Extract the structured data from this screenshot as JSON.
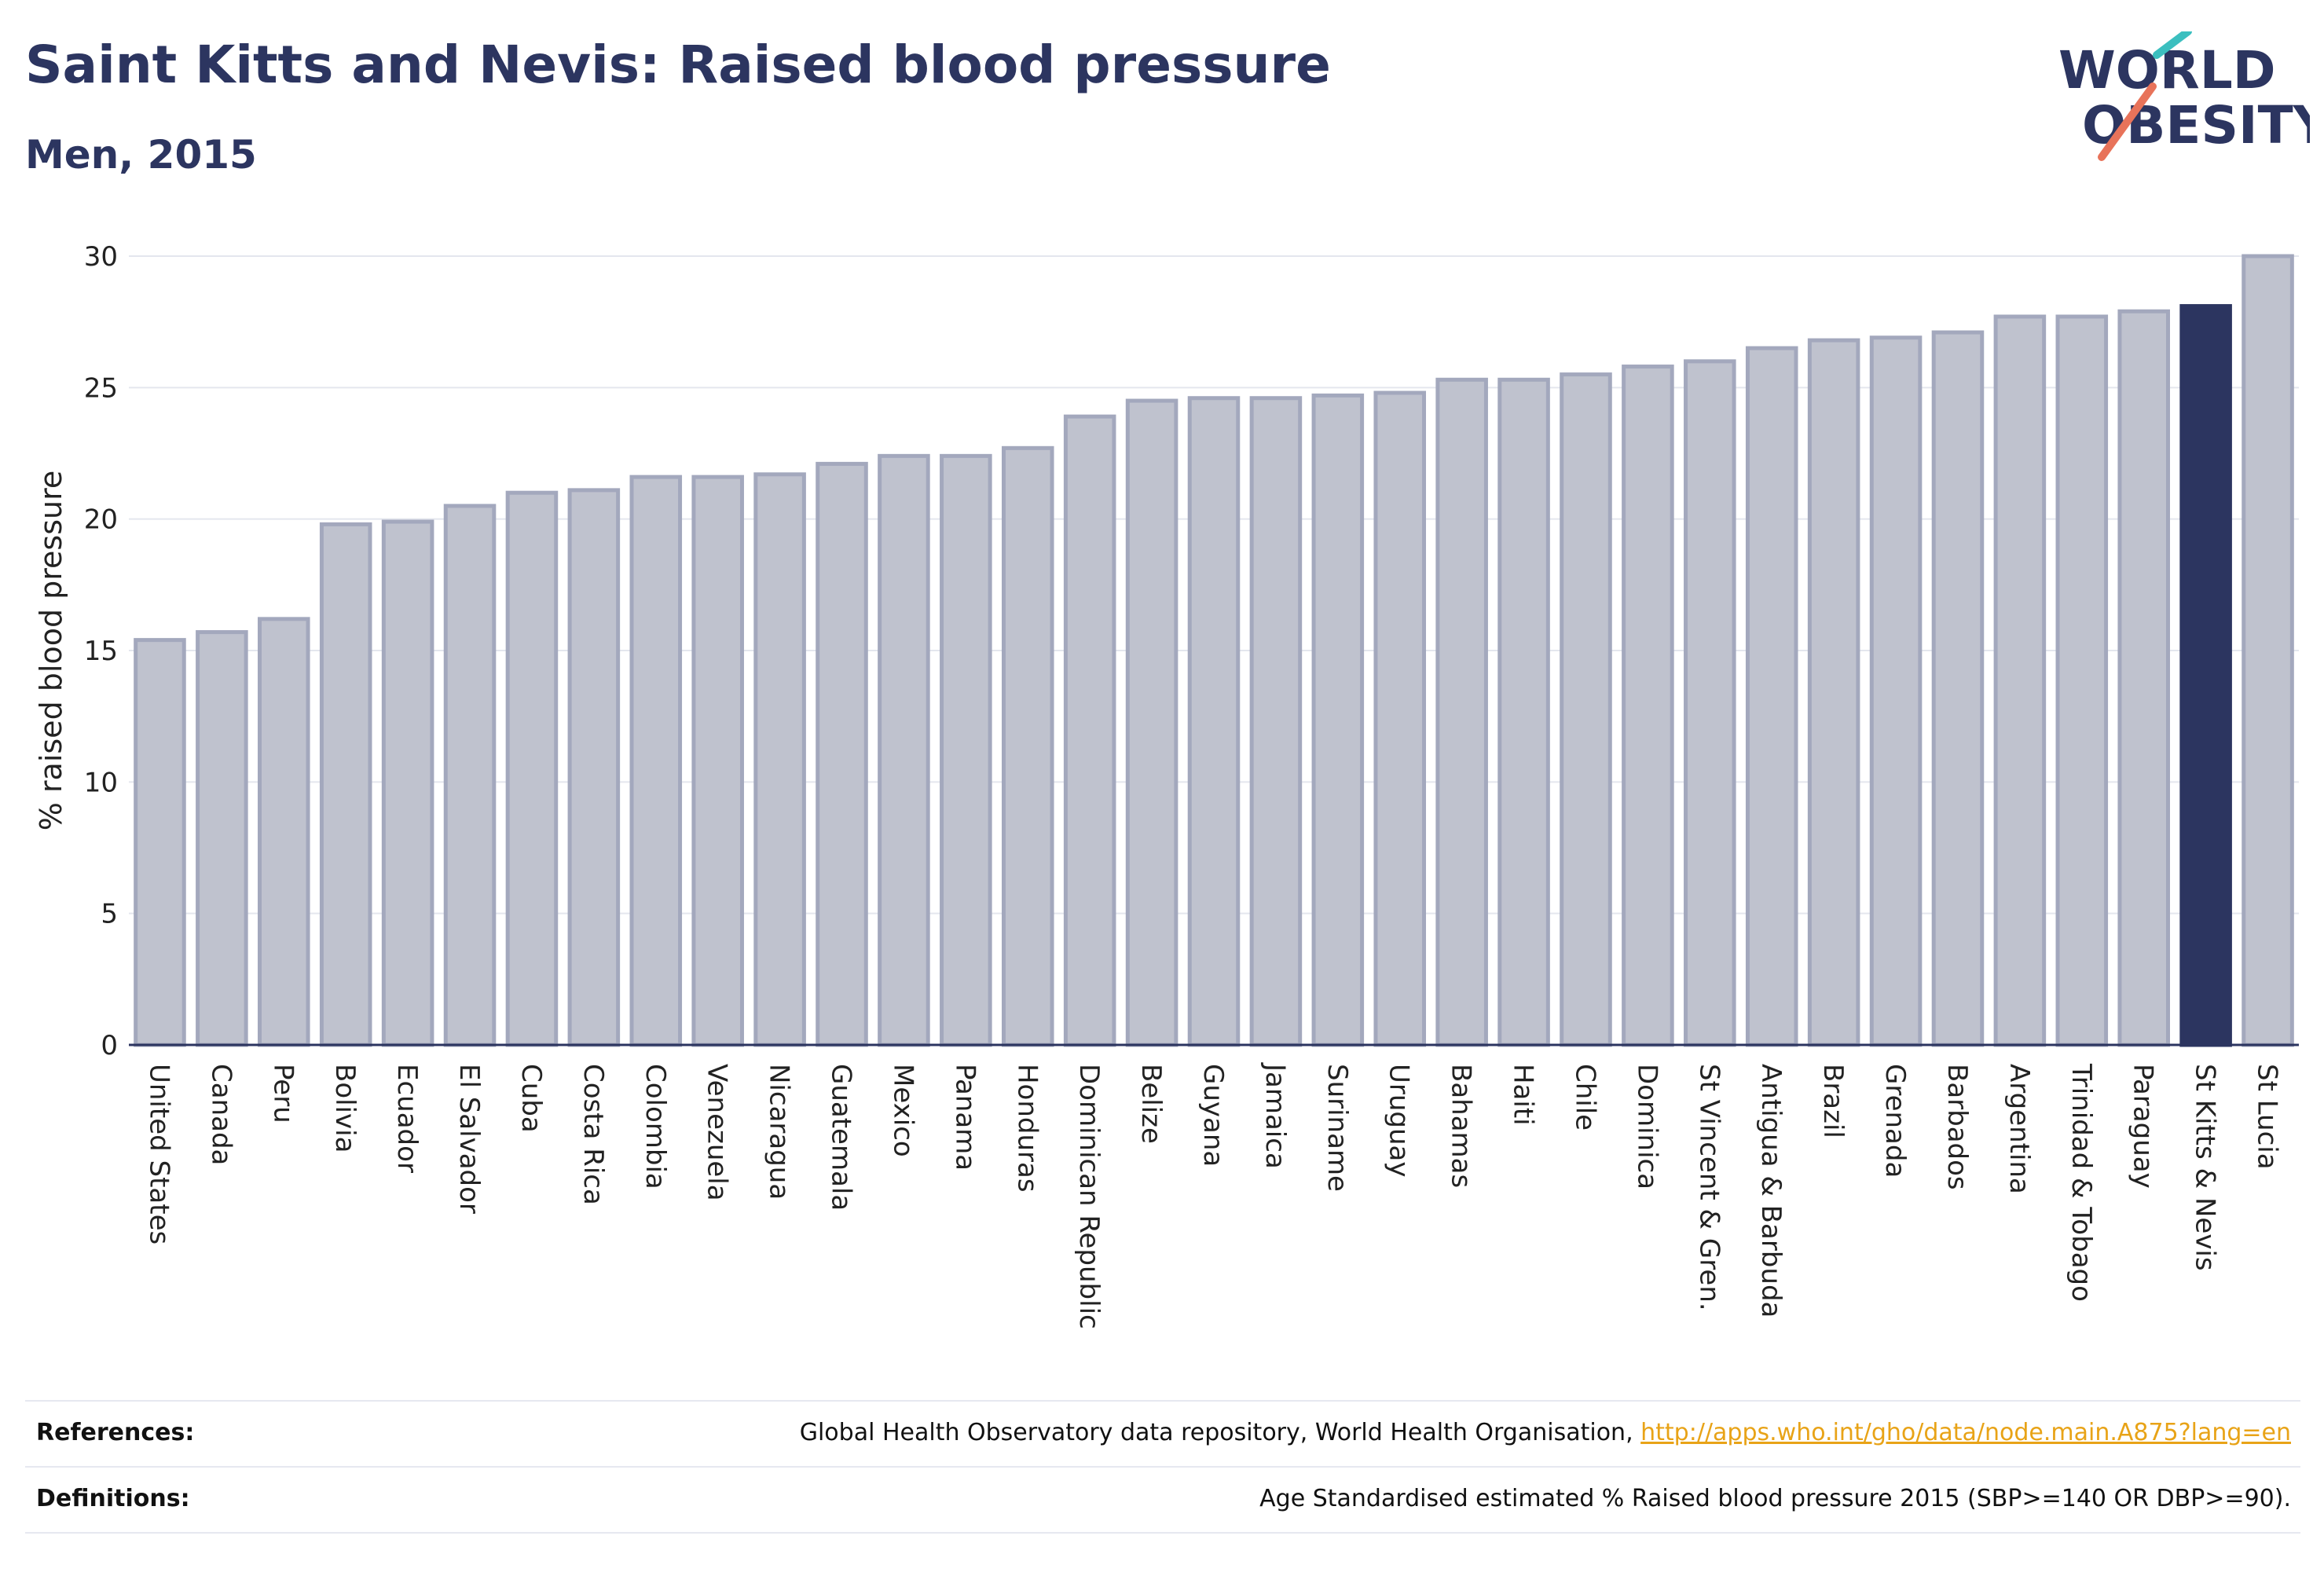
{
  "header": {
    "title": "Saint Kitts and Nevis: Raised blood pressure",
    "subtitle": "Men, 2015",
    "logo_line1": "WORLD",
    "logo_line2": "OBESITY"
  },
  "colors": {
    "bar_default": "#bfc2ce",
    "bar_default_stroke": "#a3a8bd",
    "bar_highlight": "#2c3560",
    "title": "#2c3560",
    "grid": "#e4e6ee",
    "logo_teal": "#3bbfbf",
    "logo_coral": "#e8735a",
    "link": "#e8a317"
  },
  "chart_data": {
    "type": "bar",
    "categories": [
      "United States",
      "Canada",
      "Peru",
      "Bolivia",
      "Ecuador",
      "El Salvador",
      "Cuba",
      "Costa Rica",
      "Colombia",
      "Venezuela",
      "Nicaragua",
      "Guatemala",
      "Mexico",
      "Panama",
      "Honduras",
      "Dominican Republic",
      "Belize",
      "Guyana",
      "Jamaica",
      "Suriname",
      "Uruguay",
      "Bahamas",
      "Haiti",
      "Chile",
      "Dominica",
      "St Vincent & Gren.",
      "Antigua & Barbuda",
      "Brazil",
      "Grenada",
      "Barbados",
      "Argentina",
      "Trinidad & Tobago",
      "Paraguay",
      "St Kitts & Nevis",
      "St Lucia"
    ],
    "values": [
      15.4,
      15.7,
      16.2,
      19.8,
      19.9,
      20.5,
      21.0,
      21.1,
      21.6,
      21.6,
      21.7,
      22.1,
      22.4,
      22.4,
      22.7,
      23.9,
      24.5,
      24.6,
      24.6,
      24.7,
      24.8,
      25.3,
      25.3,
      25.5,
      25.8,
      26.0,
      26.5,
      26.8,
      26.9,
      27.1,
      27.7,
      27.7,
      27.9,
      28.1,
      30.0
    ],
    "highlight": "St Kitts & Nevis",
    "ylabel": "% raised blood pressure",
    "ylim": [
      0,
      30
    ],
    "yticks": [
      0,
      5,
      10,
      15,
      20,
      25,
      30
    ],
    "grid": true
  },
  "footer": {
    "references_label": "References:",
    "references_text": "Global Health Observatory data repository, World Health Organisation, ",
    "references_link": "http://apps.who.int/gho/data/node.main.A875?lang=en",
    "definitions_label": "Definitions:",
    "definitions_text": "Age Standardised estimated % Raised blood pressure 2015 (SBP>=140 OR DBP>=90)."
  }
}
